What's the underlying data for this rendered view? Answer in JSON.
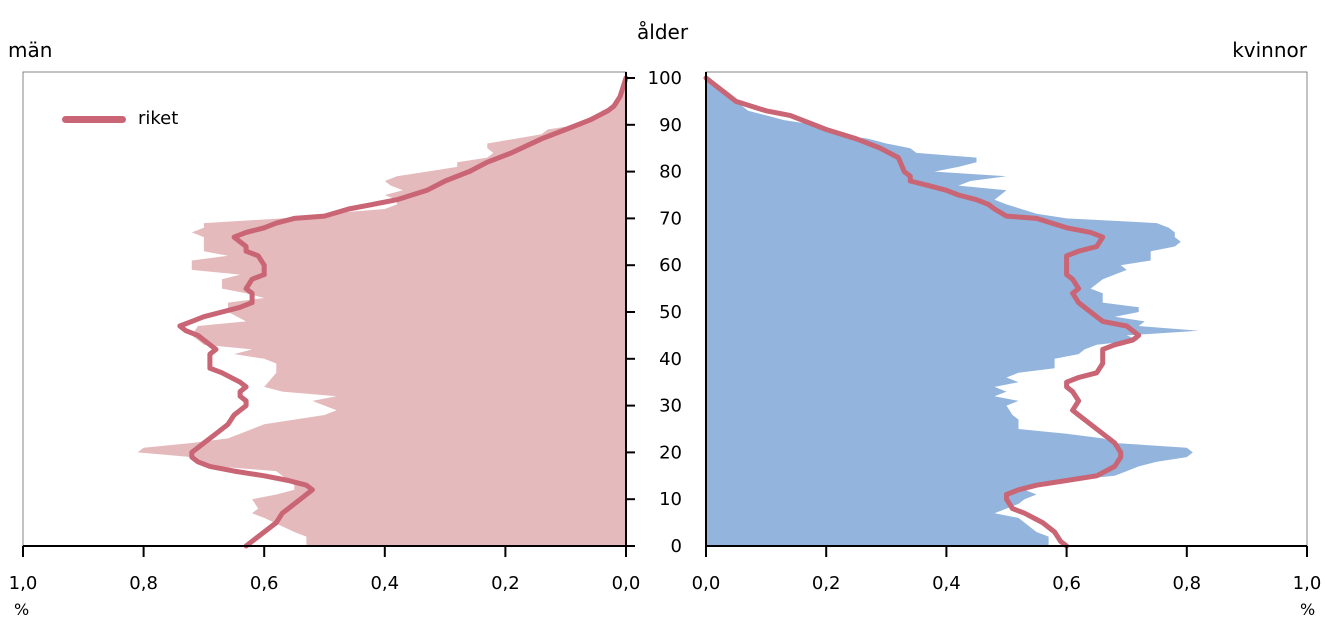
{
  "chart_data": {
    "type": "area",
    "header": {
      "center_label": "ålder",
      "left_label": "män",
      "right_label": "kvinnor"
    },
    "unit_label": "%",
    "legend": {
      "label": "riket",
      "position": "top-left"
    },
    "colors": {
      "men_fill": "#e5babd",
      "women_fill": "#93b4dc",
      "line": "#c96574",
      "axis": "#000000"
    },
    "y_axis": {
      "range": [
        0,
        100
      ],
      "ticks": [
        "0",
        "10",
        "20",
        "30",
        "40",
        "50",
        "60",
        "70",
        "80",
        "90",
        "100"
      ]
    },
    "x_axis_left": {
      "range": [
        1.0,
        0.0
      ],
      "ticks": [
        "1,0",
        "0,8",
        "0,6",
        "0,4",
        "0,2",
        "0,0"
      ]
    },
    "x_axis_right": {
      "range": [
        0.0,
        1.0
      ],
      "ticks": [
        "0,0",
        "0,2",
        "0,4",
        "0,6",
        "0,8",
        "1,0"
      ]
    },
    "series": [
      {
        "panel": "män",
        "kind": "area",
        "points": [
          [
            0.53,
            0
          ],
          [
            0.53,
            2
          ],
          [
            0.55,
            3
          ],
          [
            0.6,
            6
          ],
          [
            0.62,
            7
          ],
          [
            0.61,
            8
          ],
          [
            0.62,
            10
          ],
          [
            0.58,
            11
          ],
          [
            0.55,
            12
          ],
          [
            0.55,
            13
          ],
          [
            0.56,
            14
          ],
          [
            0.58,
            16
          ],
          [
            0.68,
            17
          ],
          [
            0.7,
            18
          ],
          [
            0.72,
            19
          ],
          [
            0.81,
            20
          ],
          [
            0.8,
            21
          ],
          [
            0.72,
            22
          ],
          [
            0.66,
            23
          ],
          [
            0.64,
            24
          ],
          [
            0.6,
            26
          ],
          [
            0.5,
            28
          ],
          [
            0.48,
            29
          ],
          [
            0.5,
            30
          ],
          [
            0.52,
            31
          ],
          [
            0.48,
            32
          ],
          [
            0.57,
            33
          ],
          [
            0.6,
            34
          ],
          [
            0.58,
            37
          ],
          [
            0.58,
            39
          ],
          [
            0.6,
            40
          ],
          [
            0.65,
            41
          ],
          [
            0.62,
            42
          ],
          [
            0.7,
            43
          ],
          [
            0.72,
            45
          ],
          [
            0.71,
            47
          ],
          [
            0.63,
            48
          ],
          [
            0.66,
            50
          ],
          [
            0.66,
            52
          ],
          [
            0.6,
            53
          ],
          [
            0.63,
            54
          ],
          [
            0.67,
            55
          ],
          [
            0.67,
            57
          ],
          [
            0.64,
            58
          ],
          [
            0.72,
            59
          ],
          [
            0.72,
            61
          ],
          [
            0.66,
            62
          ],
          [
            0.7,
            63
          ],
          [
            0.7,
            65
          ],
          [
            0.7,
            66
          ],
          [
            0.72,
            67
          ],
          [
            0.7,
            68
          ],
          [
            0.7,
            69
          ],
          [
            0.57,
            70
          ],
          [
            0.5,
            71
          ],
          [
            0.4,
            72
          ],
          [
            0.38,
            73
          ],
          [
            0.38,
            74
          ],
          [
            0.4,
            75
          ],
          [
            0.37,
            76
          ],
          [
            0.39,
            77
          ],
          [
            0.4,
            78
          ],
          [
            0.38,
            79
          ],
          [
            0.33,
            80
          ],
          [
            0.28,
            81
          ],
          [
            0.28,
            82
          ],
          [
            0.23,
            83
          ],
          [
            0.22,
            84
          ],
          [
            0.23,
            85
          ],
          [
            0.23,
            86
          ],
          [
            0.14,
            88
          ],
          [
            0.13,
            89
          ],
          [
            0.08,
            90
          ],
          [
            0.06,
            91
          ],
          [
            0.05,
            92
          ],
          [
            0.04,
            93
          ],
          [
            0.025,
            94
          ],
          [
            0.015,
            95
          ],
          [
            0.01,
            97
          ],
          [
            0.005,
            99
          ],
          [
            0.0,
            100
          ]
        ]
      },
      {
        "panel": "kvinnor",
        "kind": "area",
        "points": [
          [
            0.57,
            0
          ],
          [
            0.57,
            2
          ],
          [
            0.55,
            3
          ],
          [
            0.53,
            5
          ],
          [
            0.52,
            6
          ],
          [
            0.48,
            7
          ],
          [
            0.52,
            9
          ],
          [
            0.53,
            10
          ],
          [
            0.55,
            11
          ],
          [
            0.53,
            12
          ],
          [
            0.55,
            13
          ],
          [
            0.6,
            14
          ],
          [
            0.68,
            15
          ],
          [
            0.7,
            16
          ],
          [
            0.72,
            17
          ],
          [
            0.75,
            18
          ],
          [
            0.8,
            19
          ],
          [
            0.81,
            20
          ],
          [
            0.8,
            21
          ],
          [
            0.68,
            22
          ],
          [
            0.66,
            23
          ],
          [
            0.6,
            24
          ],
          [
            0.52,
            25
          ],
          [
            0.52,
            27
          ],
          [
            0.51,
            28
          ],
          [
            0.5,
            30
          ],
          [
            0.52,
            31
          ],
          [
            0.48,
            32
          ],
          [
            0.5,
            33
          ],
          [
            0.48,
            34
          ],
          [
            0.52,
            35
          ],
          [
            0.5,
            36
          ],
          [
            0.52,
            37
          ],
          [
            0.58,
            38
          ],
          [
            0.58,
            40
          ],
          [
            0.62,
            41
          ],
          [
            0.63,
            42
          ],
          [
            0.65,
            43
          ],
          [
            0.72,
            44
          ],
          [
            0.7,
            45
          ],
          [
            0.82,
            46
          ],
          [
            0.72,
            47
          ],
          [
            0.73,
            48
          ],
          [
            0.68,
            49
          ],
          [
            0.72,
            50
          ],
          [
            0.72,
            51
          ],
          [
            0.66,
            52
          ],
          [
            0.66,
            54
          ],
          [
            0.64,
            55
          ],
          [
            0.66,
            57
          ],
          [
            0.7,
            59
          ],
          [
            0.69,
            60
          ],
          [
            0.74,
            61
          ],
          [
            0.74,
            63
          ],
          [
            0.78,
            64
          ],
          [
            0.79,
            65
          ],
          [
            0.78,
            66
          ],
          [
            0.78,
            67
          ],
          [
            0.77,
            68
          ],
          [
            0.75,
            69
          ],
          [
            0.6,
            70
          ],
          [
            0.55,
            71
          ],
          [
            0.5,
            73
          ],
          [
            0.48,
            74
          ],
          [
            0.5,
            76
          ],
          [
            0.42,
            77
          ],
          [
            0.44,
            78
          ],
          [
            0.5,
            79
          ],
          [
            0.38,
            80
          ],
          [
            0.42,
            81
          ],
          [
            0.45,
            82
          ],
          [
            0.45,
            83
          ],
          [
            0.35,
            84
          ],
          [
            0.34,
            85
          ],
          [
            0.3,
            86
          ],
          [
            0.27,
            87
          ],
          [
            0.22,
            88
          ],
          [
            0.2,
            89
          ],
          [
            0.18,
            90
          ],
          [
            0.13,
            91
          ],
          [
            0.1,
            92
          ],
          [
            0.07,
            93
          ],
          [
            0.05,
            95
          ],
          [
            0.03,
            97
          ],
          [
            0.01,
            99
          ],
          [
            0.0,
            100
          ]
        ]
      },
      {
        "panel": "män",
        "kind": "line",
        "name": "riket",
        "points": [
          [
            0.63,
            0
          ],
          [
            0.62,
            1
          ],
          [
            0.6,
            3
          ],
          [
            0.58,
            5
          ],
          [
            0.57,
            7
          ],
          [
            0.56,
            8
          ],
          [
            0.54,
            10
          ],
          [
            0.52,
            12
          ],
          [
            0.53,
            13
          ],
          [
            0.56,
            14
          ],
          [
            0.6,
            15
          ],
          [
            0.65,
            16
          ],
          [
            0.69,
            17
          ],
          [
            0.71,
            18
          ],
          [
            0.72,
            19
          ],
          [
            0.72,
            20
          ],
          [
            0.71,
            21
          ],
          [
            0.7,
            22
          ],
          [
            0.68,
            24
          ],
          [
            0.66,
            26
          ],
          [
            0.65,
            28
          ],
          [
            0.64,
            29
          ],
          [
            0.63,
            30
          ],
          [
            0.63,
            31
          ],
          [
            0.64,
            32
          ],
          [
            0.64,
            33
          ],
          [
            0.63,
            34
          ],
          [
            0.64,
            35
          ],
          [
            0.67,
            37
          ],
          [
            0.69,
            38
          ],
          [
            0.69,
            40
          ],
          [
            0.69,
            41
          ],
          [
            0.68,
            42
          ],
          [
            0.69,
            43
          ],
          [
            0.71,
            45
          ],
          [
            0.73,
            46
          ],
          [
            0.74,
            47
          ],
          [
            0.72,
            48
          ],
          [
            0.7,
            49
          ],
          [
            0.67,
            50
          ],
          [
            0.64,
            51
          ],
          [
            0.62,
            52
          ],
          [
            0.62,
            54
          ],
          [
            0.63,
            55
          ],
          [
            0.62,
            57
          ],
          [
            0.6,
            58
          ],
          [
            0.6,
            60
          ],
          [
            0.61,
            62
          ],
          [
            0.63,
            63
          ],
          [
            0.63,
            64
          ],
          [
            0.65,
            66
          ],
          [
            0.63,
            67
          ],
          [
            0.6,
            68
          ],
          [
            0.58,
            69
          ],
          [
            0.55,
            70
          ],
          [
            0.5,
            70.5
          ],
          [
            0.46,
            72
          ],
          [
            0.42,
            73
          ],
          [
            0.38,
            74
          ],
          [
            0.33,
            76
          ],
          [
            0.3,
            78
          ],
          [
            0.26,
            80
          ],
          [
            0.23,
            82
          ],
          [
            0.19,
            84
          ],
          [
            0.14,
            87
          ],
          [
            0.1,
            89
          ],
          [
            0.06,
            91
          ],
          [
            0.03,
            93
          ],
          [
            0.02,
            94
          ],
          [
            0.01,
            96
          ],
          [
            0.005,
            98
          ],
          [
            0.0,
            100
          ]
        ]
      },
      {
        "panel": "kvinnor",
        "kind": "line",
        "name": "riket",
        "points": [
          [
            0.6,
            0
          ],
          [
            0.59,
            1
          ],
          [
            0.58,
            3
          ],
          [
            0.56,
            5
          ],
          [
            0.53,
            7
          ],
          [
            0.51,
            8
          ],
          [
            0.5,
            10
          ],
          [
            0.5,
            11
          ],
          [
            0.52,
            12
          ],
          [
            0.55,
            13
          ],
          [
            0.6,
            14
          ],
          [
            0.65,
            15
          ],
          [
            0.68,
            17
          ],
          [
            0.69,
            19
          ],
          [
            0.69,
            20
          ],
          [
            0.68,
            22
          ],
          [
            0.66,
            24
          ],
          [
            0.64,
            26
          ],
          [
            0.62,
            28
          ],
          [
            0.61,
            29
          ],
          [
            0.62,
            31
          ],
          [
            0.61,
            33
          ],
          [
            0.6,
            34
          ],
          [
            0.6,
            35
          ],
          [
            0.62,
            36
          ],
          [
            0.65,
            37
          ],
          [
            0.66,
            39
          ],
          [
            0.66,
            41
          ],
          [
            0.66,
            42
          ],
          [
            0.68,
            43
          ],
          [
            0.71,
            44
          ],
          [
            0.72,
            45
          ],
          [
            0.71,
            46
          ],
          [
            0.7,
            47
          ],
          [
            0.66,
            48
          ],
          [
            0.64,
            50
          ],
          [
            0.62,
            52
          ],
          [
            0.61,
            54
          ],
          [
            0.62,
            55
          ],
          [
            0.61,
            57
          ],
          [
            0.6,
            58
          ],
          [
            0.6,
            60
          ],
          [
            0.6,
            62
          ],
          [
            0.62,
            63
          ],
          [
            0.65,
            64
          ],
          [
            0.66,
            66
          ],
          [
            0.64,
            67
          ],
          [
            0.6,
            68
          ],
          [
            0.55,
            70
          ],
          [
            0.5,
            70.5
          ],
          [
            0.48,
            72
          ],
          [
            0.47,
            73
          ],
          [
            0.45,
            74
          ],
          [
            0.42,
            75
          ],
          [
            0.4,
            76
          ],
          [
            0.37,
            77
          ],
          [
            0.34,
            78
          ],
          [
            0.34,
            79
          ],
          [
            0.33,
            80
          ],
          [
            0.32,
            83
          ],
          [
            0.29,
            85
          ],
          [
            0.25,
            87
          ],
          [
            0.2,
            89
          ],
          [
            0.14,
            92
          ],
          [
            0.1,
            93
          ],
          [
            0.05,
            95
          ],
          [
            0.03,
            97
          ],
          [
            0.02,
            98
          ],
          [
            0.01,
            99
          ],
          [
            0.0,
            100
          ]
        ]
      }
    ]
  }
}
